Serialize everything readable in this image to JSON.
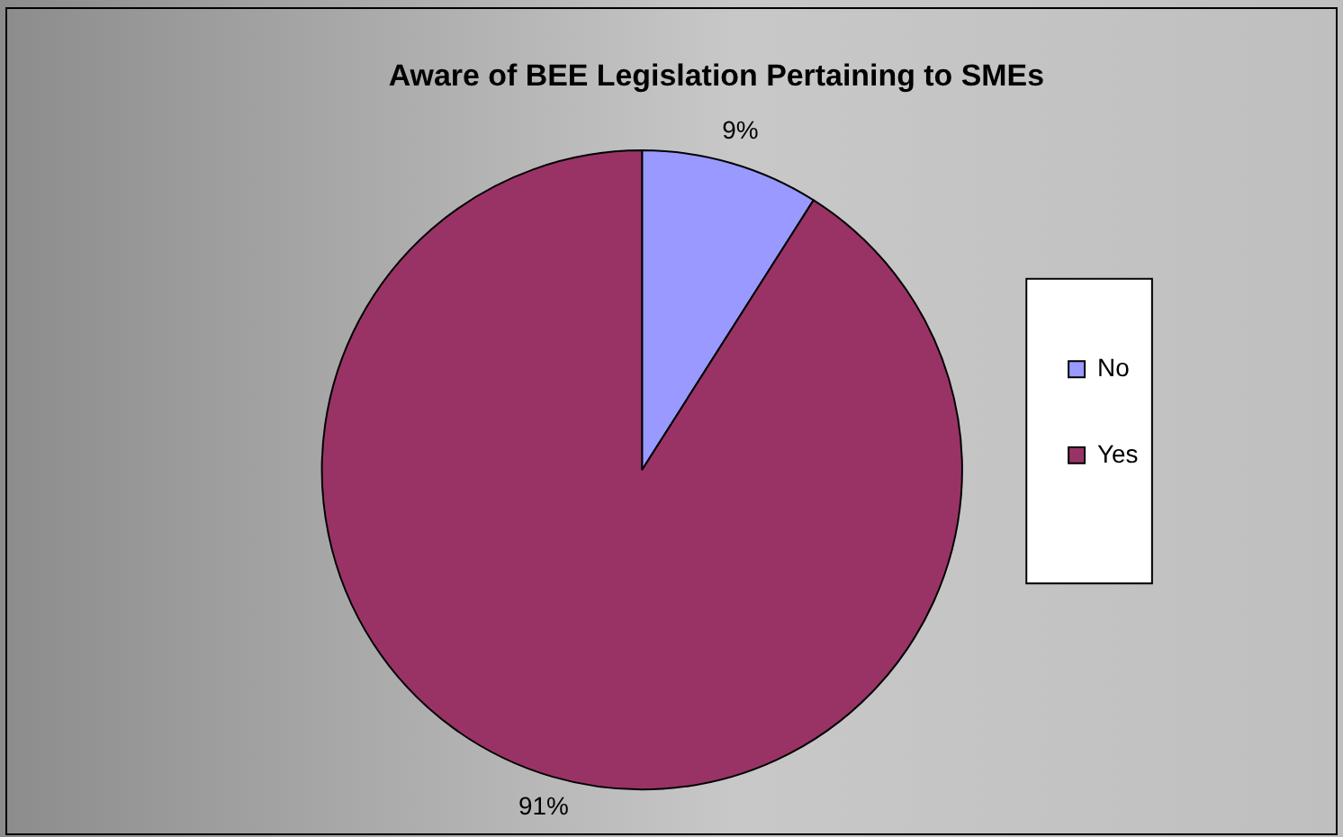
{
  "chart_data": {
    "type": "pie",
    "title": "Aware of BEE Legislation Pertaining to SMEs",
    "categories": [
      "No",
      "Yes"
    ],
    "values": [
      9,
      91
    ],
    "colors": [
      "#9999ff",
      "#993366"
    ],
    "value_labels": [
      "9%",
      "91%"
    ],
    "legend": "right"
  }
}
